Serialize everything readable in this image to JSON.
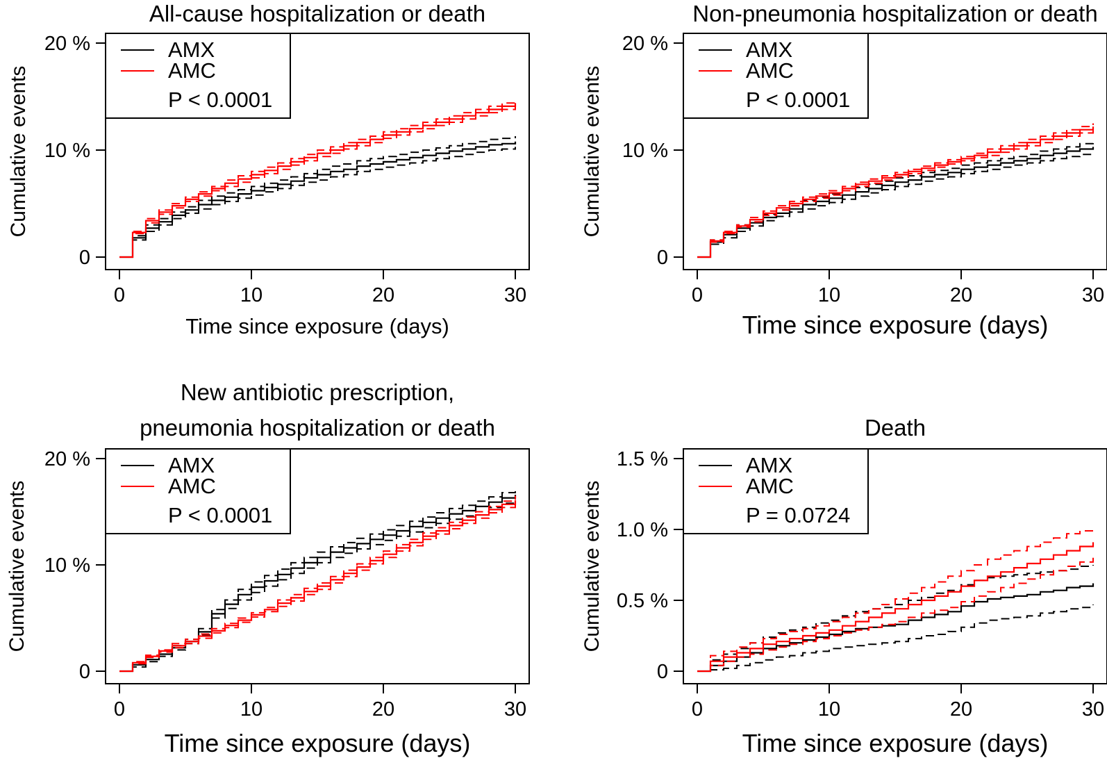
{
  "series_styles": {
    "AMX": {
      "color": "#000000"
    },
    "AMC": {
      "color": "#ff0000"
    }
  },
  "chart_data": [
    {
      "type": "line",
      "title": [
        "All-cause hospitalization or death"
      ],
      "xlabel": "Time since exposure (days)",
      "ylabel": "Cumulative events",
      "xlim": [
        0,
        30
      ],
      "ylim": [
        0,
        20
      ],
      "xticks": [
        0,
        10,
        20,
        30
      ],
      "xtick_labels": [
        "0",
        "10",
        "20",
        "30"
      ],
      "yticks": [
        0,
        10,
        20
      ],
      "ytick_labels": [
        "0",
        "10 %",
        "20 %"
      ],
      "grid": false,
      "legend": {
        "position": "top-left",
        "entries": [
          "AMX",
          "AMC"
        ],
        "pvalue": "P < 0.0001"
      },
      "x": [
        0,
        1,
        2,
        3,
        4,
        5,
        6,
        7,
        8,
        9,
        10,
        11,
        12,
        13,
        14,
        15,
        16,
        17,
        18,
        19,
        20,
        21,
        22,
        23,
        24,
        25,
        26,
        27,
        28,
        29,
        30
      ],
      "series": [
        {
          "name": "AMX",
          "values": [
            0,
            1.8,
            2.7,
            3.3,
            3.9,
            4.4,
            4.9,
            5.3,
            5.6,
            5.9,
            6.2,
            6.5,
            6.8,
            7.1,
            7.4,
            7.7,
            8.0,
            8.2,
            8.5,
            8.7,
            8.9,
            9.1,
            9.3,
            9.5,
            9.7,
            9.9,
            10.1,
            10.3,
            10.5,
            10.6,
            10.8
          ],
          "lower": [
            0,
            1.6,
            2.4,
            3.0,
            3.6,
            4.1,
            4.5,
            4.9,
            5.2,
            5.5,
            5.8,
            6.1,
            6.4,
            6.7,
            7.0,
            7.2,
            7.5,
            7.7,
            8.0,
            8.2,
            8.4,
            8.6,
            8.8,
            9.0,
            9.2,
            9.4,
            9.6,
            9.8,
            10.0,
            10.1,
            10.3
          ],
          "upper": [
            0,
            2.0,
            3.0,
            3.6,
            4.2,
            4.7,
            5.3,
            5.7,
            6.0,
            6.3,
            6.6,
            6.9,
            7.2,
            7.5,
            7.8,
            8.2,
            8.5,
            8.7,
            9.0,
            9.2,
            9.4,
            9.6,
            9.8,
            10.0,
            10.2,
            10.4,
            10.6,
            10.8,
            11.0,
            11.1,
            11.3
          ]
        },
        {
          "name": "AMC",
          "values": [
            0,
            2.3,
            3.4,
            4.2,
            4.8,
            5.4,
            5.9,
            6.4,
            6.9,
            7.3,
            7.7,
            8.1,
            8.5,
            8.9,
            9.3,
            9.7,
            10.0,
            10.4,
            10.7,
            11.0,
            11.4,
            11.7,
            12.0,
            12.3,
            12.6,
            12.9,
            13.2,
            13.5,
            13.8,
            14.1,
            14.4
          ],
          "lower": [
            0,
            2.2,
            3.2,
            4.0,
            4.6,
            5.2,
            5.7,
            6.2,
            6.6,
            7.0,
            7.4,
            7.8,
            8.2,
            8.6,
            9.0,
            9.4,
            9.7,
            10.1,
            10.4,
            10.7,
            11.1,
            11.4,
            11.7,
            12.0,
            12.3,
            12.6,
            12.9,
            13.2,
            13.5,
            13.8,
            14.1
          ],
          "upper": [
            0,
            2.4,
            3.6,
            4.4,
            5.0,
            5.6,
            6.1,
            6.6,
            7.2,
            7.6,
            8.0,
            8.4,
            8.8,
            9.2,
            9.6,
            10.0,
            10.3,
            10.7,
            11.0,
            11.3,
            11.7,
            12.0,
            12.3,
            12.6,
            12.9,
            13.2,
            13.5,
            13.8,
            14.1,
            14.4,
            14.7
          ]
        }
      ]
    },
    {
      "type": "line",
      "title": [
        "Non-pneumonia hospitalization or death"
      ],
      "xlabel": "Time since exposure (days)",
      "ylabel": "Cumulative events",
      "xlim": [
        0,
        30
      ],
      "ylim": [
        0,
        20
      ],
      "xticks": [
        0,
        10,
        20,
        30
      ],
      "xtick_labels": [
        "0",
        "10",
        "20",
        "30"
      ],
      "yticks": [
        0,
        10,
        20
      ],
      "ytick_labels": [
        "0",
        "10 %",
        "20 %"
      ],
      "grid": false,
      "legend": {
        "position": "top-left",
        "entries": [
          "AMX",
          "AMC"
        ],
        "pvalue": "P < 0.0001"
      },
      "x": [
        0,
        1,
        2,
        3,
        4,
        5,
        6,
        7,
        8,
        9,
        10,
        11,
        12,
        13,
        14,
        15,
        16,
        17,
        18,
        19,
        20,
        21,
        22,
        23,
        24,
        25,
        26,
        27,
        28,
        29,
        30
      ],
      "series": [
        {
          "name": "AMX",
          "values": [
            0,
            1.4,
            2.1,
            2.7,
            3.2,
            3.7,
            4.1,
            4.5,
            4.9,
            5.2,
            5.5,
            5.8,
            6.1,
            6.4,
            6.7,
            7.0,
            7.2,
            7.5,
            7.7,
            7.9,
            8.2,
            8.4,
            8.6,
            8.8,
            9.0,
            9.2,
            9.5,
            9.7,
            9.9,
            10.1,
            10.3
          ],
          "lower": [
            0,
            1.2,
            1.8,
            2.4,
            2.9,
            3.4,
            3.8,
            4.2,
            4.5,
            4.8,
            5.1,
            5.4,
            5.7,
            6.0,
            6.3,
            6.6,
            6.8,
            7.1,
            7.3,
            7.5,
            7.8,
            8.0,
            8.2,
            8.4,
            8.6,
            8.8,
            9.0,
            9.2,
            9.4,
            9.6,
            9.8
          ],
          "upper": [
            0,
            1.6,
            2.4,
            3.0,
            3.5,
            4.0,
            4.4,
            4.8,
            5.3,
            5.6,
            5.9,
            6.2,
            6.5,
            6.8,
            7.1,
            7.4,
            7.6,
            7.9,
            8.1,
            8.3,
            8.6,
            8.8,
            9.0,
            9.2,
            9.4,
            9.6,
            9.9,
            10.1,
            10.3,
            10.6,
            10.8
          ]
        },
        {
          "name": "AMC",
          "values": [
            0,
            1.5,
            2.3,
            2.9,
            3.5,
            4.1,
            4.6,
            5.0,
            5.4,
            5.7,
            6.0,
            6.4,
            6.8,
            7.1,
            7.4,
            7.7,
            8.0,
            8.3,
            8.6,
            8.9,
            9.2,
            9.5,
            9.8,
            10.1,
            10.4,
            10.7,
            11.0,
            11.3,
            11.6,
            11.9,
            12.2
          ],
          "lower": [
            0,
            1.4,
            2.2,
            2.8,
            3.3,
            3.9,
            4.4,
            4.8,
            5.2,
            5.5,
            5.8,
            6.2,
            6.6,
            6.9,
            7.2,
            7.5,
            7.8,
            8.1,
            8.4,
            8.7,
            9.0,
            9.3,
            9.5,
            9.8,
            10.1,
            10.4,
            10.7,
            11.0,
            11.3,
            11.6,
            11.9
          ],
          "upper": [
            0,
            1.6,
            2.4,
            3.0,
            3.7,
            4.3,
            4.8,
            5.2,
            5.6,
            5.9,
            6.2,
            6.6,
            7.0,
            7.3,
            7.6,
            7.9,
            8.2,
            8.5,
            8.8,
            9.1,
            9.4,
            9.7,
            10.1,
            10.4,
            10.7,
            11.0,
            11.3,
            11.6,
            11.9,
            12.2,
            12.5
          ]
        }
      ]
    },
    {
      "type": "line",
      "title": [
        "New antibiotic prescription,",
        "pneumonia hospitalization or death"
      ],
      "xlabel": "Time since exposure (days)",
      "ylabel": "Cumulative events",
      "xlim": [
        0,
        30
      ],
      "ylim": [
        0,
        20
      ],
      "xticks": [
        0,
        10,
        20,
        30
      ],
      "xtick_labels": [
        "0",
        "10",
        "20",
        "30"
      ],
      "yticks": [
        0,
        10,
        20
      ],
      "ytick_labels": [
        "0",
        "10 %",
        "20 %"
      ],
      "grid": false,
      "legend": {
        "position": "top-left",
        "entries": [
          "AMX",
          "AMC"
        ],
        "pvalue": "P < 0.0001"
      },
      "x": [
        0,
        1,
        2,
        3,
        4,
        5,
        6,
        7,
        8,
        9,
        10,
        11,
        12,
        13,
        14,
        15,
        16,
        17,
        18,
        19,
        20,
        21,
        22,
        23,
        24,
        25,
        26,
        27,
        28,
        29,
        30
      ],
      "series": [
        {
          "name": "AMX",
          "values": [
            0,
            0.6,
            1.1,
            1.6,
            2.2,
            2.8,
            3.7,
            5.4,
            6.3,
            7.2,
            7.9,
            8.5,
            9.1,
            9.7,
            10.2,
            10.7,
            11.2,
            11.6,
            12.0,
            12.4,
            12.8,
            13.2,
            13.6,
            14.0,
            14.4,
            14.8,
            15.1,
            15.5,
            15.9,
            16.3,
            16.6
          ],
          "lower": [
            0,
            0.4,
            0.9,
            1.4,
            2.0,
            2.6,
            3.4,
            5.0,
            5.9,
            6.7,
            7.4,
            8.0,
            8.6,
            9.2,
            9.7,
            10.2,
            10.7,
            11.1,
            11.5,
            11.9,
            12.3,
            12.7,
            13.1,
            13.5,
            13.9,
            14.3,
            14.6,
            15.0,
            15.4,
            15.8,
            16.1
          ],
          "upper": [
            0,
            0.8,
            1.3,
            1.8,
            2.4,
            3.0,
            4.0,
            5.8,
            6.7,
            7.7,
            8.4,
            9.0,
            9.6,
            10.2,
            10.7,
            11.2,
            11.7,
            12.1,
            12.5,
            12.9,
            13.3,
            13.7,
            14.1,
            14.5,
            14.9,
            15.3,
            15.6,
            16.0,
            16.4,
            16.8,
            17.3
          ]
        },
        {
          "name": "AMC",
          "values": [
            0,
            0.8,
            1.4,
            1.9,
            2.4,
            2.8,
            3.3,
            3.8,
            4.3,
            4.8,
            5.3,
            5.8,
            6.4,
            6.9,
            7.5,
            8.0,
            8.6,
            9.2,
            9.8,
            10.4,
            11.0,
            11.6,
            12.1,
            12.7,
            13.2,
            13.7,
            14.2,
            14.7,
            15.2,
            15.7,
            16.1
          ],
          "lower": [
            0,
            0.7,
            1.3,
            1.8,
            2.2,
            2.6,
            3.1,
            3.6,
            4.1,
            4.6,
            5.1,
            5.6,
            6.1,
            6.6,
            7.2,
            7.7,
            8.3,
            8.9,
            9.5,
            10.1,
            10.7,
            11.3,
            11.8,
            12.4,
            12.9,
            13.4,
            13.9,
            14.4,
            14.9,
            15.4,
            15.7
          ],
          "upper": [
            0,
            0.9,
            1.5,
            2.0,
            2.6,
            3.0,
            3.5,
            4.0,
            4.5,
            5.0,
            5.5,
            6.0,
            6.7,
            7.2,
            7.8,
            8.3,
            8.9,
            9.5,
            10.1,
            10.7,
            11.3,
            11.9,
            12.4,
            13.0,
            13.5,
            14.0,
            14.5,
            15.0,
            15.5,
            16.0,
            16.5
          ]
        }
      ]
    },
    {
      "type": "line",
      "title": [
        "Death"
      ],
      "xlabel": "Time since exposure (days)",
      "ylabel": "Cumulative events",
      "xlim": [
        0,
        30
      ],
      "ylim": [
        0,
        1.5
      ],
      "xticks": [
        0,
        10,
        20,
        30
      ],
      "xtick_labels": [
        "0",
        "10",
        "20",
        "30"
      ],
      "yticks": [
        0,
        0.5,
        1.0,
        1.5
      ],
      "ytick_labels": [
        "0",
        "0.5 %",
        "1.0 %",
        "1.5 %"
      ],
      "grid": false,
      "legend": {
        "position": "top-left",
        "entries": [
          "AMX",
          "AMC"
        ],
        "pvalue": "P = 0.0724"
      },
      "x": [
        0,
        1,
        2,
        3,
        4,
        5,
        6,
        7,
        8,
        9,
        10,
        11,
        12,
        13,
        14,
        15,
        16,
        17,
        18,
        19,
        20,
        21,
        22,
        23,
        24,
        25,
        26,
        27,
        28,
        29,
        30
      ],
      "series": [
        {
          "name": "AMX",
          "values": [
            0,
            0.04,
            0.07,
            0.1,
            0.13,
            0.16,
            0.18,
            0.2,
            0.22,
            0.24,
            0.26,
            0.28,
            0.3,
            0.31,
            0.32,
            0.33,
            0.36,
            0.38,
            0.4,
            0.42,
            0.46,
            0.49,
            0.51,
            0.52,
            0.53,
            0.54,
            0.56,
            0.57,
            0.59,
            0.6,
            0.62
          ],
          "lower": [
            0,
            0.01,
            0.02,
            0.04,
            0.06,
            0.08,
            0.1,
            0.11,
            0.13,
            0.14,
            0.16,
            0.17,
            0.18,
            0.19,
            0.2,
            0.21,
            0.23,
            0.25,
            0.26,
            0.28,
            0.31,
            0.34,
            0.36,
            0.37,
            0.38,
            0.39,
            0.41,
            0.42,
            0.44,
            0.45,
            0.47
          ],
          "upper": [
            0,
            0.08,
            0.12,
            0.16,
            0.2,
            0.24,
            0.27,
            0.29,
            0.31,
            0.34,
            0.36,
            0.39,
            0.42,
            0.44,
            0.45,
            0.47,
            0.5,
            0.52,
            0.55,
            0.57,
            0.61,
            0.64,
            0.66,
            0.67,
            0.68,
            0.69,
            0.7,
            0.71,
            0.72,
            0.74,
            0.75
          ]
        },
        {
          "name": "AMC",
          "values": [
            0,
            0.07,
            0.1,
            0.13,
            0.16,
            0.19,
            0.21,
            0.23,
            0.25,
            0.27,
            0.29,
            0.32,
            0.35,
            0.38,
            0.41,
            0.44,
            0.47,
            0.5,
            0.53,
            0.56,
            0.6,
            0.64,
            0.67,
            0.7,
            0.73,
            0.76,
            0.79,
            0.82,
            0.85,
            0.88,
            0.91
          ],
          "lower": [
            0,
            0.04,
            0.07,
            0.1,
            0.12,
            0.15,
            0.17,
            0.19,
            0.21,
            0.23,
            0.25,
            0.27,
            0.29,
            0.31,
            0.33,
            0.35,
            0.38,
            0.41,
            0.43,
            0.45,
            0.49,
            0.53,
            0.56,
            0.59,
            0.62,
            0.65,
            0.68,
            0.71,
            0.74,
            0.77,
            0.8
          ],
          "upper": [
            0,
            0.11,
            0.14,
            0.17,
            0.2,
            0.23,
            0.26,
            0.28,
            0.3,
            0.32,
            0.35,
            0.38,
            0.41,
            0.44,
            0.47,
            0.51,
            0.55,
            0.59,
            0.63,
            0.67,
            0.71,
            0.75,
            0.79,
            0.82,
            0.85,
            0.88,
            0.91,
            0.94,
            0.97,
            0.99,
            1.01
          ]
        }
      ]
    }
  ]
}
